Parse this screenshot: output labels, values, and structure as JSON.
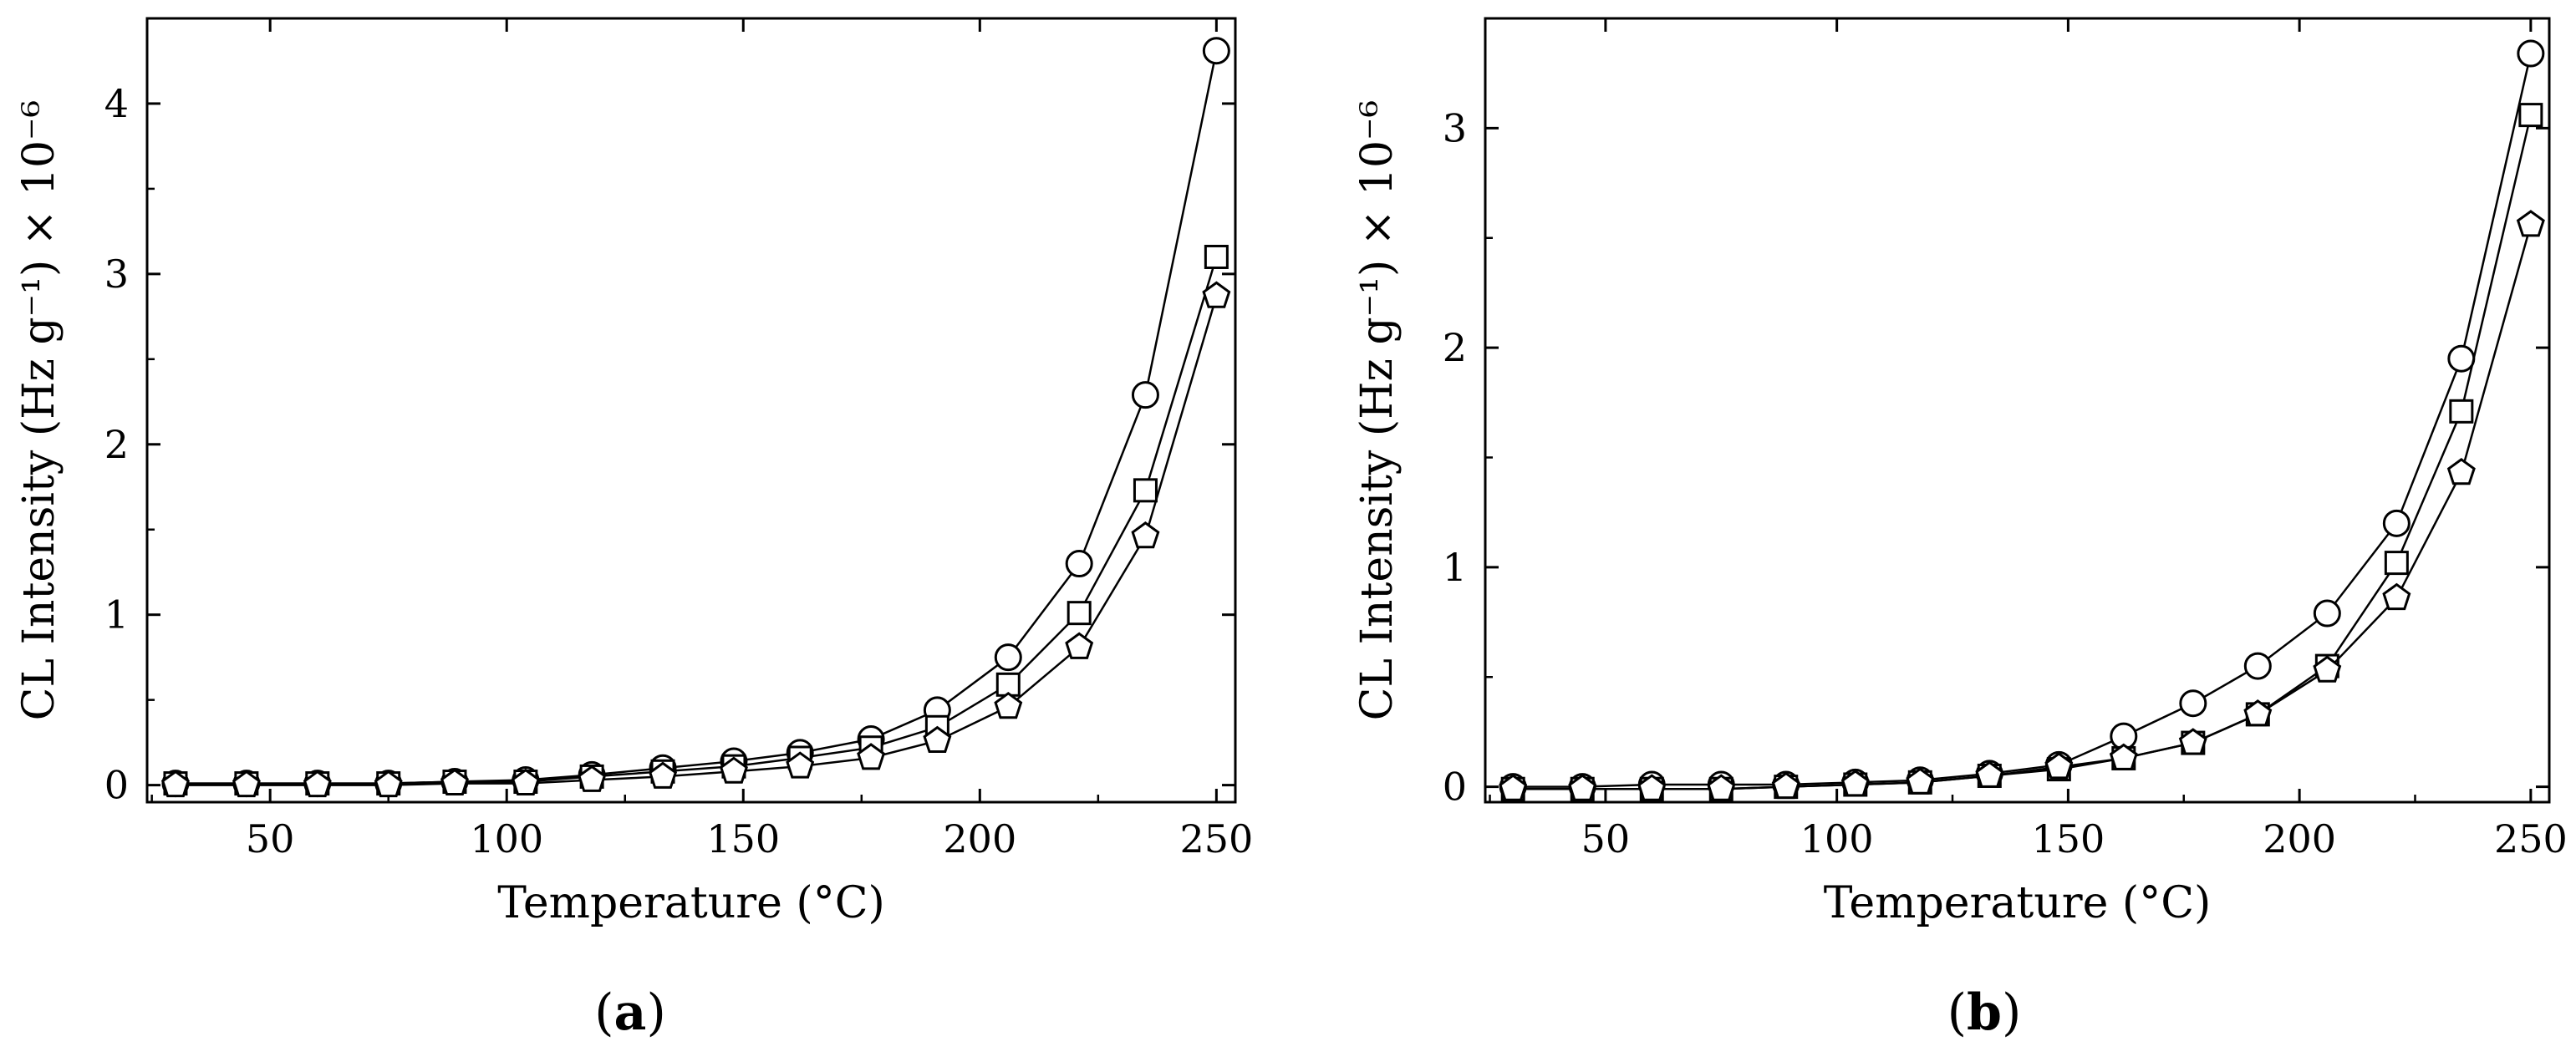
{
  "chart_data": [
    {
      "type": "line",
      "panel_label": "(a)",
      "panel_letter": "a",
      "xlabel": "Temperature (°C)",
      "ylabel": "CL Intensity (Hz g⁻¹) × 10⁻⁶",
      "xlim": [
        24,
        254
      ],
      "ylim": [
        -0.1,
        4.5
      ],
      "xticks": [
        "50",
        "100",
        "150",
        "200",
        "250"
      ],
      "yticks": [
        "0",
        "1",
        "2",
        "3",
        "4"
      ],
      "grid": false,
      "legend": "none",
      "x": [
        30,
        45,
        60,
        75,
        89,
        104,
        118,
        133,
        148,
        162,
        177,
        191,
        206,
        221,
        235,
        250
      ],
      "series": [
        {
          "marker": "circle",
          "values": [
            0.01,
            0.01,
            0.01,
            0.01,
            0.02,
            0.03,
            0.06,
            0.1,
            0.14,
            0.19,
            0.27,
            0.44,
            0.75,
            1.3,
            2.29,
            4.31
          ]
        },
        {
          "marker": "square",
          "values": [
            0.01,
            0.01,
            0.01,
            0.01,
            0.02,
            0.02,
            0.05,
            0.08,
            0.11,
            0.16,
            0.22,
            0.34,
            0.59,
            1.01,
            1.73,
            3.1
          ]
        },
        {
          "marker": "pentagon",
          "values": [
            0.0,
            0.0,
            0.0,
            0.0,
            0.01,
            0.01,
            0.03,
            0.05,
            0.08,
            0.11,
            0.16,
            0.26,
            0.46,
            0.81,
            1.46,
            2.87
          ]
        }
      ]
    },
    {
      "type": "line",
      "panel_label": "(b)",
      "panel_letter": "b",
      "xlabel": "Temperature (°C)",
      "ylabel": "CL Intensity (Hz g⁻¹) × 10⁻⁶",
      "xlim": [
        24,
        254
      ],
      "ylim": [
        -0.07,
        3.5
      ],
      "xticks": [
        "50",
        "100",
        "150",
        "200",
        "250"
      ],
      "yticks": [
        "0",
        "1",
        "2",
        "3"
      ],
      "grid": false,
      "legend": "none",
      "x": [
        30,
        45,
        60,
        75,
        89,
        104,
        118,
        133,
        148,
        162,
        177,
        191,
        206,
        221,
        235,
        250
      ],
      "series": [
        {
          "marker": "circle",
          "values": [
            0.0,
            0.0,
            0.01,
            0.01,
            0.01,
            0.02,
            0.03,
            0.06,
            0.1,
            0.23,
            0.38,
            0.55,
            0.79,
            1.2,
            1.95,
            3.34
          ]
        },
        {
          "marker": "square",
          "values": [
            -0.01,
            -0.01,
            -0.01,
            -0.01,
            0.0,
            0.01,
            0.02,
            0.05,
            0.08,
            0.13,
            0.2,
            0.33,
            0.55,
            1.02,
            1.71,
            3.06
          ]
        },
        {
          "marker": "pentagon",
          "values": [
            -0.01,
            -0.01,
            -0.01,
            -0.01,
            0.0,
            0.01,
            0.02,
            0.05,
            0.09,
            0.13,
            0.2,
            0.33,
            0.53,
            0.86,
            1.43,
            2.56
          ]
        }
      ]
    }
  ]
}
